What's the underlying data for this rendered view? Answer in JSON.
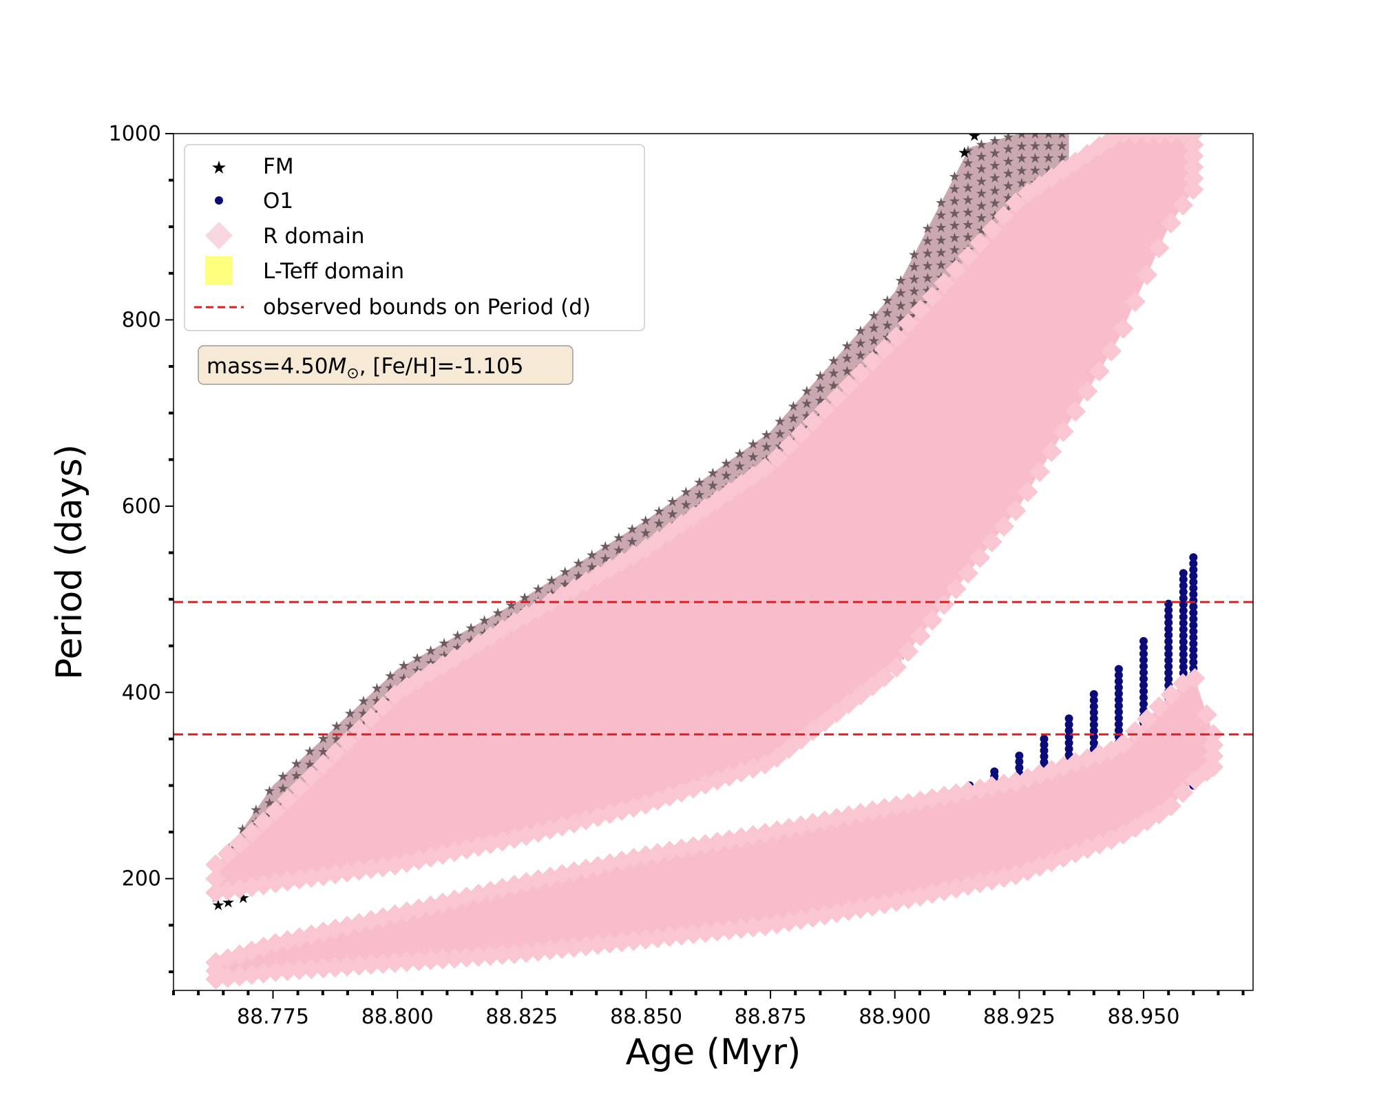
{
  "chart_data": {
    "type": "scatter",
    "xlabel": "Age (Myr)",
    "ylabel": "Period (days)",
    "xlim": [
      88.755,
      88.972
    ],
    "ylim": [
      80,
      1000
    ],
    "x_ticks": [
      88.775,
      88.8,
      88.825,
      88.85,
      88.875,
      88.9,
      88.925,
      88.95
    ],
    "x_tick_labels": [
      "88.775",
      "88.800",
      "88.825",
      "88.850",
      "88.875",
      "88.900",
      "88.925",
      "88.950"
    ],
    "y_ticks": [
      200,
      400,
      600,
      800,
      1000
    ],
    "y_tick_labels": [
      "200",
      "400",
      "600",
      "800",
      "1000"
    ],
    "grid": false,
    "legend_position": "top-left",
    "legend": [
      {
        "label": "FM",
        "marker": "star",
        "color": "#000000"
      },
      {
        "label": "O1",
        "marker": "circle",
        "color": "#0b0b7a"
      },
      {
        "label": "R domain",
        "marker": "diamond",
        "color": "#f7cdd8"
      },
      {
        "label": "L-Teff domain",
        "marker": "square",
        "color": "#ffff80"
      },
      {
        "label": "observed bounds on Period (d)",
        "marker": "dashed-line",
        "color": "#e41a1c"
      }
    ],
    "annotation": {
      "prefix": "mass=4.50",
      "symbol": "M",
      "subscript": "⊙",
      "suffix": ", [Fe/H]=-1.105"
    },
    "hlines": [
      {
        "y": 497,
        "style": "dashed",
        "color": "#e41a1c"
      },
      {
        "y": 355,
        "style": "dashed",
        "color": "#e41a1c"
      }
    ],
    "series": [
      {
        "name": "FM",
        "band": [
          {
            "x": 88.7635,
            "low": 180,
            "high": 212
          },
          {
            "x": 88.775,
            "low": 205,
            "high": 300
          },
          {
            "x": 88.8,
            "low": 225,
            "high": 425
          },
          {
            "x": 88.825,
            "low": 255,
            "high": 500
          },
          {
            "x": 88.85,
            "low": 290,
            "high": 585
          },
          {
            "x": 88.875,
            "low": 335,
            "high": 680
          },
          {
            "x": 88.9,
            "low": 430,
            "high": 830
          },
          {
            "x": 88.915,
            "low": 560,
            "high": 985
          },
          {
            "x": 88.925,
            "low": 700,
            "high": 1000
          },
          {
            "x": 88.935,
            "low": 900,
            "high": 1000
          }
        ],
        "edge_points": [
          {
            "x": 88.764,
            "y": 172
          },
          {
            "x": 88.766,
            "y": 175
          },
          {
            "x": 88.769,
            "y": 180
          },
          {
            "x": 88.914,
            "y": 980
          },
          {
            "x": 88.916,
            "y": 998
          }
        ]
      },
      {
        "name": "O1",
        "columns": [
          {
            "x": 88.915,
            "top": 300
          },
          {
            "x": 88.92,
            "top": 315
          },
          {
            "x": 88.925,
            "top": 332
          },
          {
            "x": 88.93,
            "top": 350
          },
          {
            "x": 88.935,
            "top": 372
          },
          {
            "x": 88.94,
            "top": 398
          },
          {
            "x": 88.945,
            "top": 425
          },
          {
            "x": 88.95,
            "top": 455
          },
          {
            "x": 88.955,
            "top": 495
          },
          {
            "x": 88.958,
            "top": 528
          },
          {
            "x": 88.96,
            "top": 545
          }
        ]
      },
      {
        "name": "R domain",
        "bands": [
          [
            {
              "x": 88.7635,
              "low": 185,
              "high": 215
            },
            {
              "x": 88.775,
              "low": 195,
              "high": 270
            },
            {
              "x": 88.8,
              "low": 215,
              "high": 400
            },
            {
              "x": 88.825,
              "low": 245,
              "high": 480
            },
            {
              "x": 88.85,
              "low": 280,
              "high": 555
            },
            {
              "x": 88.875,
              "low": 325,
              "high": 645
            },
            {
              "x": 88.9,
              "low": 425,
              "high": 780
            },
            {
              "x": 88.925,
              "low": 600,
              "high": 930
            },
            {
              "x": 88.945,
              "low": 780,
              "high": 1000
            },
            {
              "x": 88.955,
              "low": 900,
              "high": 1000
            },
            {
              "x": 88.96,
              "low": 940,
              "high": 1000
            }
          ],
          [
            {
              "x": 88.7635,
              "low": 92,
              "high": 110
            },
            {
              "x": 88.775,
              "low": 100,
              "high": 130
            },
            {
              "x": 88.8,
              "low": 110,
              "high": 162
            },
            {
              "x": 88.825,
              "low": 120,
              "high": 195
            },
            {
              "x": 88.85,
              "low": 135,
              "high": 225
            },
            {
              "x": 88.875,
              "low": 150,
              "high": 250
            },
            {
              "x": 88.9,
              "low": 175,
              "high": 278
            },
            {
              "x": 88.925,
              "low": 205,
              "high": 305
            },
            {
              "x": 88.945,
              "low": 245,
              "high": 340
            },
            {
              "x": 88.955,
              "low": 275,
              "high": 395
            },
            {
              "x": 88.96,
              "low": 305,
              "high": 420
            },
            {
              "x": 88.964,
              "low": 320,
              "high": 355
            }
          ]
        ]
      }
    ]
  }
}
